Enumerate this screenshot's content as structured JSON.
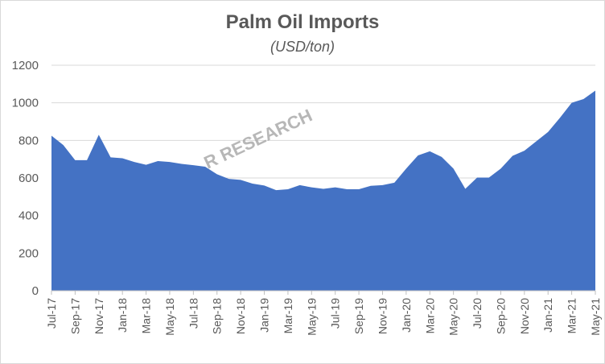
{
  "chart_data": {
    "type": "area",
    "title": "Palm Oil Imports",
    "subtitle": "(USD/ton)",
    "watermark": "R RESEARCH",
    "xlabel": "",
    "ylabel": "",
    "ylim": [
      0,
      1200
    ],
    "yticks": [
      0,
      200,
      400,
      600,
      800,
      1000,
      1200
    ],
    "grid": true,
    "legend": "none",
    "color": "#4472C4",
    "x": [
      "Jul-17",
      "Aug-17",
      "Sep-17",
      "Oct-17",
      "Nov-17",
      "Dec-17",
      "Jan-18",
      "Feb-18",
      "Mar-18",
      "Apr-18",
      "May-18",
      "Jun-18",
      "Jul-18",
      "Aug-18",
      "Sep-18",
      "Oct-18",
      "Nov-18",
      "Dec-18",
      "Jan-19",
      "Feb-19",
      "Mar-19",
      "Apr-19",
      "May-19",
      "Jun-19",
      "Jul-19",
      "Aug-19",
      "Sep-19",
      "Oct-19",
      "Nov-19",
      "Dec-19",
      "Jan-20",
      "Feb-20",
      "Mar-20",
      "Apr-20",
      "May-20",
      "Jun-20",
      "Jul-20",
      "Aug-20",
      "Sep-20",
      "Oct-20",
      "Nov-20",
      "Dec-20",
      "Jan-21",
      "Feb-21",
      "Mar-21",
      "Apr-21",
      "May-21"
    ],
    "x_tick_labels": [
      "Jul-17",
      "Sep-17",
      "Nov-17",
      "Jan-18",
      "Mar-18",
      "May-18",
      "Jul-18",
      "Sep-18",
      "Nov-18",
      "Jan-19",
      "Mar-19",
      "May-19",
      "Jul-19",
      "Sep-19",
      "Nov-19",
      "Jan-20",
      "Mar-20",
      "May-20",
      "Jul-20",
      "Sep-20",
      "Nov-20",
      "Jan-21",
      "Mar-21",
      "May-21"
    ],
    "values": [
      825,
      775,
      695,
      695,
      830,
      710,
      705,
      685,
      670,
      690,
      685,
      675,
      668,
      660,
      620,
      595,
      590,
      570,
      560,
      535,
      540,
      562,
      550,
      542,
      550,
      540,
      540,
      558,
      562,
      575,
      650,
      720,
      742,
      712,
      650,
      542,
      602,
      602,
      650,
      718,
      745,
      795,
      845,
      920,
      1000,
      1020,
      1065
    ]
  }
}
